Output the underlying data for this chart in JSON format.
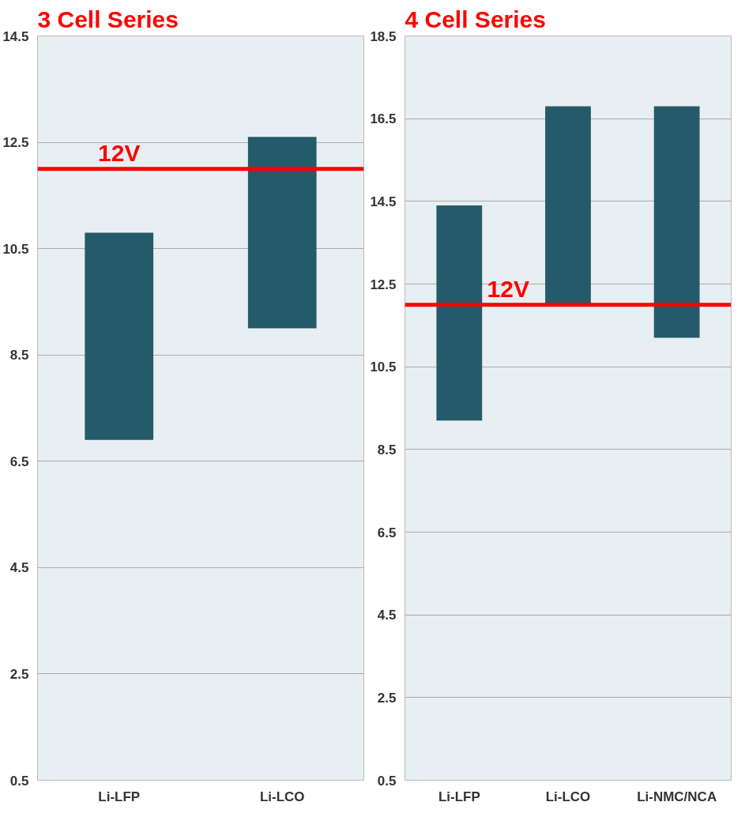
{
  "chart_data": [
    {
      "type": "bar",
      "title": "3 Cell Series",
      "categories": [
        "Li-LFP",
        "Li-LCO"
      ],
      "base": [
        6.9,
        9.0
      ],
      "values": [
        3.9,
        3.6
      ],
      "color": "#255a6a",
      "ylim": [
        0.5,
        14.5
      ],
      "yticks": [
        0.5,
        2.5,
        4.5,
        6.5,
        8.5,
        10.5,
        12.5,
        14.5
      ],
      "grid": "y",
      "ref_lines": [
        {
          "axis": "y",
          "value": 12,
          "label": "12V",
          "color": "#ff0000"
        }
      ]
    },
    {
      "type": "bar",
      "title": "4 Cell Series",
      "categories": [
        "Li-LFP",
        "Li-LCO",
        "Li-NMC/NCA"
      ],
      "base": [
        9.2,
        12.0,
        11.2
      ],
      "values": [
        5.2,
        4.8,
        5.6
      ],
      "color": "#255a6a",
      "ylim": [
        0.5,
        18.5
      ],
      "yticks": [
        0.5,
        2.5,
        4.5,
        6.5,
        8.5,
        10.5,
        12.5,
        14.5,
        16.5,
        18.5
      ],
      "grid": "y",
      "ref_lines": [
        {
          "axis": "y",
          "value": 12,
          "label": "12V",
          "color": "#ff0000"
        }
      ]
    }
  ]
}
